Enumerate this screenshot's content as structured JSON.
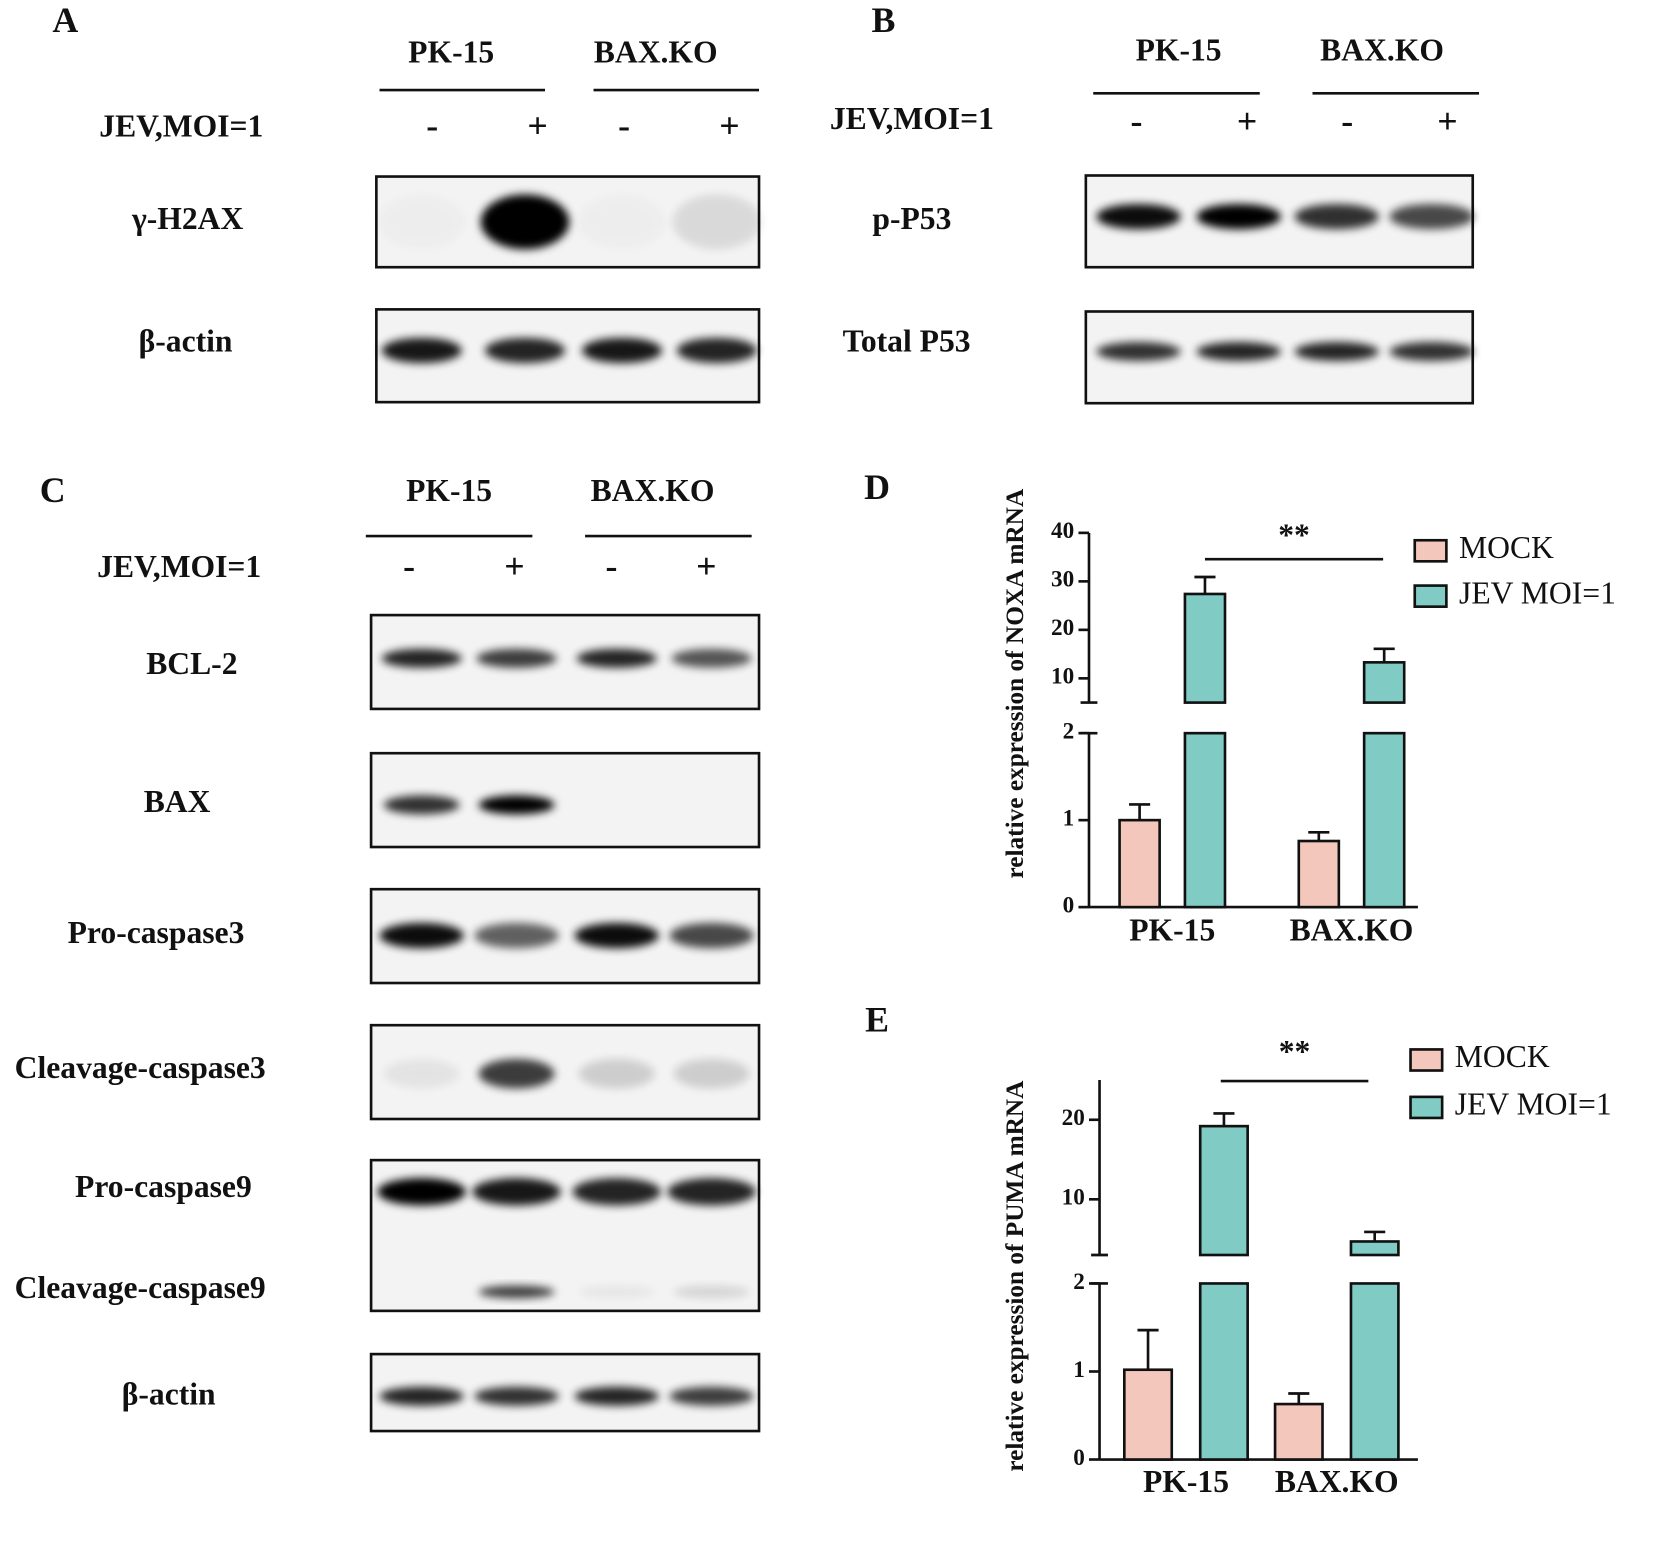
{
  "panels": [
    {
      "letter": "A",
      "groups": [
        "PK-15",
        "BAX.KO"
      ],
      "condition": "JEV,MOI=1",
      "signs": [
        "-",
        "+",
        "-",
        "+"
      ],
      "rows": [
        "γ-H2AX",
        "β-actin"
      ]
    },
    {
      "letter": "B",
      "groups": [
        "PK-15",
        "BAX.KO"
      ],
      "condition": "JEV,MOI=1",
      "signs": [
        "-",
        "+",
        "-",
        "+"
      ],
      "rows": [
        "p-P53",
        "Total P53"
      ]
    },
    {
      "letter": "C",
      "groups": [
        "PK-15",
        "BAX.KO"
      ],
      "condition": "JEV,MOI=1",
      "signs": [
        "-",
        "+",
        "-",
        "+"
      ],
      "rows": [
        "BCL-2",
        "BAX",
        "Pro-caspase3",
        "Cleavage-caspase3",
        "Pro-caspase9",
        "Cleavage-caspase9",
        "β-actin"
      ]
    }
  ],
  "chart_data": [
    {
      "type": "bar",
      "panel": "D",
      "ylabel": "relative expression of NOXA mRNA",
      "categories": [
        "PK-15",
        "BAX.KO"
      ],
      "series": [
        {
          "name": "MOCK",
          "color": "#f4c7bd",
          "values": [
            1.0,
            0.76
          ],
          "errors": [
            0.18,
            0.1
          ]
        },
        {
          "name": "JEV MOI=1",
          "color": "#80cbc4",
          "values": [
            27.4,
            13.3
          ],
          "errors": [
            3.5,
            2.8
          ]
        }
      ],
      "axis_segments": [
        {
          "ylim": [
            0,
            2
          ],
          "yticks": [
            0,
            1,
            2
          ]
        },
        {
          "ylim": [
            5,
            40
          ],
          "yticks": [
            10,
            20,
            30,
            40
          ]
        }
      ],
      "annotation": "**",
      "legend": "upper right"
    },
    {
      "type": "bar",
      "panel": "E",
      "ylabel": "relative expression of  PUMA mRNA",
      "categories": [
        "PK-15",
        "BAX.KO"
      ],
      "series": [
        {
          "name": "MOCK",
          "color": "#f4c7bd",
          "values": [
            1.02,
            0.63
          ],
          "errors": [
            0.45,
            0.12
          ]
        },
        {
          "name": "JEV MOI=1",
          "color": "#80cbc4",
          "values": [
            19.2,
            4.7
          ],
          "errors": [
            1.6,
            1.2
          ]
        }
      ],
      "axis_segments": [
        {
          "ylim": [
            0,
            2
          ],
          "yticks": [
            0,
            1,
            2
          ]
        },
        {
          "ylim": [
            3,
            25
          ],
          "yticks": [
            10,
            20
          ]
        }
      ],
      "annotation": "**",
      "legend": "upper right"
    }
  ]
}
